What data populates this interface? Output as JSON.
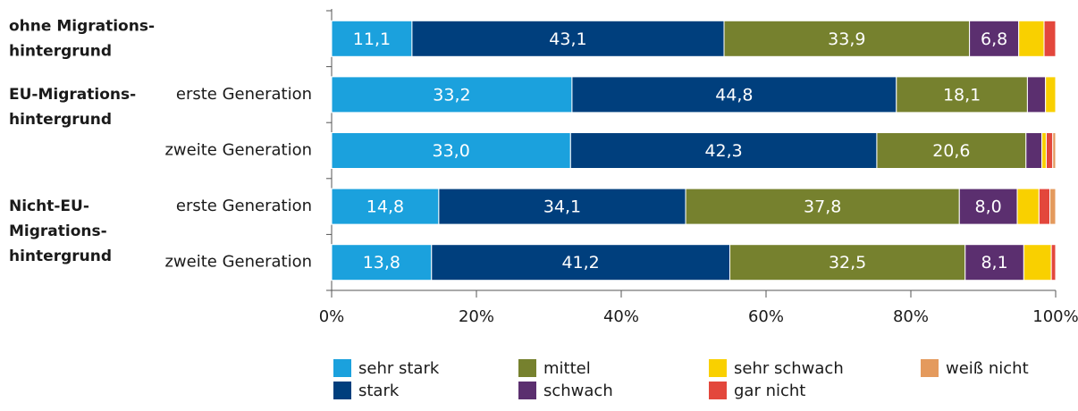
{
  "chart_data": {
    "type": "stacked-bar-horizontal",
    "row_groups": [
      [
        "ohne Migrations-",
        "hintergrund"
      ],
      [
        "EU-Migrations-",
        "hintergrund"
      ],
      null,
      [
        "Nicht-EU-",
        "Migrations-",
        "hintergrund"
      ],
      null
    ],
    "categories": [
      null,
      "erste Generation",
      "zweite Generation",
      "erste Generation",
      "zweite Generation"
    ],
    "series": [
      {
        "name": "sehr stark",
        "color": "#1ba1dd",
        "values": [
          11.1,
          33.2,
          33.0,
          14.8,
          13.8
        ],
        "value_labels": [
          "11,1",
          "33,2",
          "33,0",
          "14,8",
          "13,8"
        ]
      },
      {
        "name": "stark",
        "color": "#003f7d",
        "values": [
          43.1,
          44.8,
          42.3,
          34.1,
          41.2
        ],
        "value_labels": [
          "43,1",
          "44,8",
          "42,3",
          "34,1",
          "41,2"
        ]
      },
      {
        "name": "mittel",
        "color": "#76812e",
        "values": [
          33.9,
          18.1,
          20.6,
          37.8,
          32.5
        ],
        "value_labels": [
          "33,9",
          "18,1",
          "20,6",
          "37,8",
          "32,5"
        ]
      },
      {
        "name": "schwach",
        "color": "#5b2f6f",
        "values": [
          6.8,
          2.5,
          2.2,
          8.0,
          8.1
        ],
        "value_labels": [
          "6,8",
          null,
          null,
          "8,0",
          "8,1"
        ]
      },
      {
        "name": "sehr schwach",
        "color": "#f9d000",
        "values": [
          3.5,
          1.4,
          0.6,
          3.0,
          3.8
        ]
      },
      {
        "name": "gar nicht",
        "color": "#e3473c",
        "values": [
          1.6,
          0,
          0.9,
          1.5,
          0.6
        ]
      },
      {
        "name": "weiß nicht",
        "color": "#e49a5d",
        "values": [
          0,
          0,
          0.4,
          0.8,
          0
        ]
      }
    ],
    "xlim": [
      0,
      100
    ],
    "xticks": [
      {
        "value": 0,
        "label": "0%"
      },
      {
        "value": 20,
        "label": "20%"
      },
      {
        "value": 40,
        "label": "40%"
      },
      {
        "value": 60,
        "label": "60%"
      },
      {
        "value": 80,
        "label": "80%"
      },
      {
        "value": 100,
        "label": "100%"
      }
    ]
  }
}
